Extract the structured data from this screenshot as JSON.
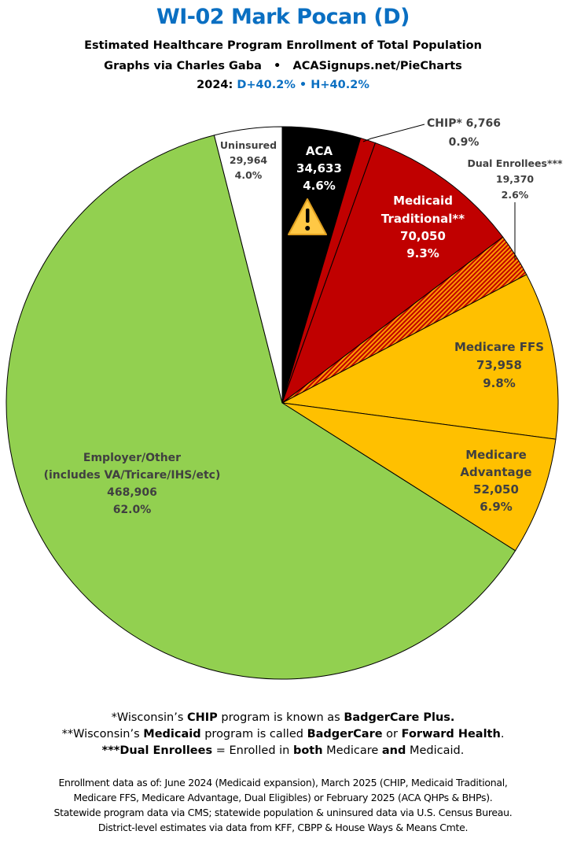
{
  "header": {
    "title": "WI-02 Mark Pocan (D)",
    "subtitle": "Estimated Healthcare Program Enrollment of Total Population",
    "credit_left": "Graphs via Charles Gaba",
    "credit_sep": "•",
    "credit_right": "ACASignups.net/PieCharts",
    "pvi_year": "2024:",
    "pvi_d": "D+40.2%",
    "pvi_sep": "•",
    "pvi_h": "H+40.2%",
    "accent_color": "#0a6fc2"
  },
  "chart_data": {
    "type": "pie",
    "title": "WI-02 Mark Pocan (D)",
    "start": "top",
    "direction": "clockwise",
    "slices": [
      {
        "label": "ACA",
        "lines": [
          "ACA",
          "34,633",
          "4.6%"
        ],
        "value": 34633,
        "percent": 4.6,
        "color": "#000000",
        "text_color": "#ffffff",
        "icon": "warning-icon"
      },
      {
        "label": "CHIP*",
        "lines": [
          "CHIP* 6,766",
          "0.9%"
        ],
        "value": 6766,
        "percent": 0.9,
        "color": "#c00000",
        "text_color": "#404040"
      },
      {
        "label": "Medicaid Traditional**",
        "lines": [
          "Medicaid",
          "Traditional**",
          "70,050",
          "9.3%"
        ],
        "value": 70050,
        "percent": 9.3,
        "color": "#c00000",
        "text_color": "#ffffff"
      },
      {
        "label": "Dual Enrollees***",
        "lines": [
          "Dual Enrollees***",
          "19,370",
          "2.6%"
        ],
        "value": 19370,
        "percent": 2.6,
        "color": "#e04000",
        "pattern": "hatched red/orange",
        "text_color": "#404040"
      },
      {
        "label": "Medicare FFS",
        "lines": [
          "Medicare FFS",
          "73,958",
          "9.8%"
        ],
        "value": 73958,
        "percent": 9.8,
        "color": "#ffc000",
        "text_color": "#404040"
      },
      {
        "label": "Medicare Advantage",
        "lines": [
          "Medicare",
          "Advantage",
          "52,050",
          "6.9%"
        ],
        "value": 52050,
        "percent": 6.9,
        "color": "#ffc000",
        "text_color": "#404040"
      },
      {
        "label": "Employer/Other (includes VA/Tricare/IHS/etc)",
        "lines": [
          "Employer/Other",
          "(includes VA/Tricare/IHS/etc)",
          "468,906",
          "62.0%"
        ],
        "value": 468906,
        "percent": 62.0,
        "color": "#92d050",
        "text_color": "#404040"
      },
      {
        "label": "Uninsured",
        "lines": [
          "Uninsured",
          "29,964",
          "4.0%"
        ],
        "value": 29964,
        "percent": 4.0,
        "color": "#ffffff",
        "text_color": "#404040"
      }
    ]
  },
  "footnotes": [
    [
      {
        "t": "*Wisconsin’s ",
        "b": false
      },
      {
        "t": "CHIP",
        "b": true
      },
      {
        "t": " program is known as ",
        "b": false
      },
      {
        "t": "BadgerCare Plus.",
        "b": true
      }
    ],
    [
      {
        "t": "**Wisconsin’s ",
        "b": false
      },
      {
        "t": "Medicaid",
        "b": true
      },
      {
        "t": " program is called ",
        "b": false
      },
      {
        "t": "BadgerCare",
        "b": true
      },
      {
        "t": " or ",
        "b": false
      },
      {
        "t": "Forward Health",
        "b": true
      },
      {
        "t": ".",
        "b": false
      }
    ],
    [
      {
        "t": "***Dual Enrollees",
        "b": true
      },
      {
        "t": " = Enrolled in ",
        "b": false
      },
      {
        "t": "both",
        "b": true
      },
      {
        "t": " Medicare ",
        "b": false
      },
      {
        "t": "and",
        "b": true
      },
      {
        "t": " Medicaid.",
        "b": false
      }
    ]
  ],
  "sources": [
    "Enrollment data as of: June 2024 (Medicaid expansion), March 2025 (CHIP, Medicaid Traditional,",
    "Medicare FFS, Medicare Advantage, Dual Eligibles) or February 2025 (ACA QHPs & BHPs).",
    "Statewide program data via CMS; statewide population & uninsured data via U.S. Census Bureau.",
    "District-level estimates via data from KFF, CBPP & House Ways & Means Cmte."
  ]
}
